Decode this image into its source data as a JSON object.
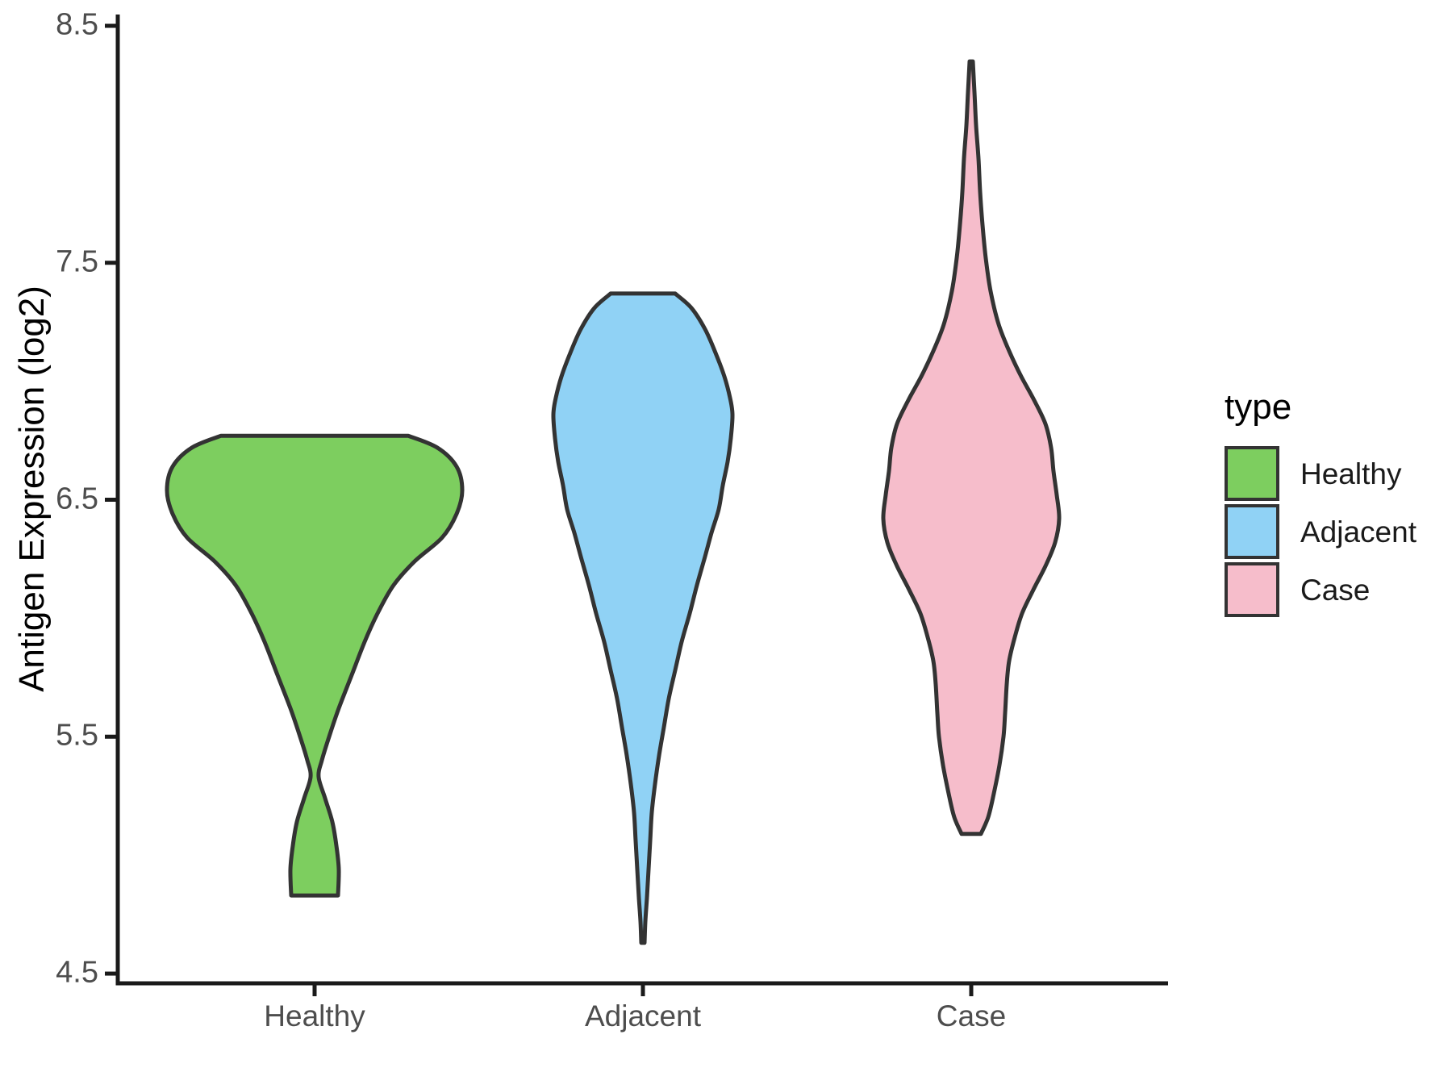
{
  "chart_data": {
    "type": "violin",
    "title": "",
    "xlabel": "",
    "ylabel": "Antigen Expression (log2)",
    "ylim": [
      4.46,
      8.57
    ],
    "y_ticks": [
      8.5,
      7.5,
      6.5,
      5.5,
      4.5
    ],
    "y_tick_labels": [
      "8.5",
      "7.5",
      "6.5",
      "5.5",
      "4.5"
    ],
    "categories": [
      "Healthy",
      "Adjacent",
      "Case"
    ],
    "grid": "off",
    "theme": "classic (white background, black axis lines)",
    "legend": {
      "title": "type",
      "position": "right",
      "entries": [
        "Healthy",
        "Adjacent",
        "Case"
      ]
    },
    "colors": {
      "healthy_fill": "#7dce5f",
      "adjacent_fill": "#90d2f5",
      "case_fill": "#f6bdcb",
      "violin_outline": "#333333",
      "axis_line": "#1a1a1a",
      "tick_text": "#4d4d4d",
      "title_text": "#000000"
    },
    "profile_units": {
      "value": "Antigen Expression (log2)",
      "halfwidth": "px, density half-width"
    },
    "series": [
      {
        "name": "Healthy",
        "fill": "#7dce5f",
        "value_range": [
          4.83,
          6.77
        ],
        "shape_notes": "flat top ~6.77, widest ~6.54, narrow waist ~5.33, small lobe ending flat ~4.83",
        "profile": [
          [
            6.77,
            116
          ],
          [
            6.72,
            152
          ],
          [
            6.64,
            176
          ],
          [
            6.54,
            183
          ],
          [
            6.44,
            176
          ],
          [
            6.34,
            158
          ],
          [
            6.24,
            124
          ],
          [
            6.14,
            98
          ],
          [
            6.02,
            78
          ],
          [
            5.9,
            62
          ],
          [
            5.76,
            46
          ],
          [
            5.62,
            30
          ],
          [
            5.5,
            18
          ],
          [
            5.4,
            9
          ],
          [
            5.33,
            5
          ],
          [
            5.24,
            13
          ],
          [
            5.14,
            22
          ],
          [
            5.04,
            27
          ],
          [
            4.94,
            30
          ],
          [
            4.83,
            29
          ]
        ]
      },
      {
        "name": "Adjacent",
        "fill": "#90d2f5",
        "value_range": [
          4.63,
          7.37
        ],
        "shape_notes": "flat top ~7.37, widest ~6.86, long taper to thin tip ~4.63",
        "profile": [
          [
            7.37,
            40
          ],
          [
            7.31,
            60
          ],
          [
            7.22,
            77
          ],
          [
            7.12,
            90
          ],
          [
            7.02,
            101
          ],
          [
            6.93,
            108
          ],
          [
            6.86,
            111
          ],
          [
            6.76,
            109
          ],
          [
            6.66,
            105
          ],
          [
            6.56,
            99
          ],
          [
            6.46,
            94
          ],
          [
            6.36,
            85
          ],
          [
            6.26,
            77
          ],
          [
            6.14,
            67
          ],
          [
            6.02,
            58
          ],
          [
            5.9,
            48
          ],
          [
            5.78,
            40
          ],
          [
            5.66,
            32
          ],
          [
            5.54,
            26
          ],
          [
            5.42,
            20
          ],
          [
            5.3,
            15
          ],
          [
            5.18,
            11
          ],
          [
            5.06,
            9
          ],
          [
            4.94,
            7
          ],
          [
            4.82,
            5
          ],
          [
            4.72,
            3
          ],
          [
            4.63,
            2
          ]
        ]
      },
      {
        "name": "Case",
        "fill": "#f6bdcb",
        "value_range": [
          5.09,
          8.35
        ],
        "shape_notes": "thin spike up to ~8.35, widest ~6.42, lower lobe ~5.5, flat bottom ~5.09",
        "profile": [
          [
            8.35,
            2
          ],
          [
            8.22,
            4
          ],
          [
            8.08,
            6
          ],
          [
            7.94,
            9
          ],
          [
            7.8,
            11
          ],
          [
            7.66,
            14
          ],
          [
            7.52,
            18
          ],
          [
            7.38,
            24
          ],
          [
            7.24,
            34
          ],
          [
            7.12,
            48
          ],
          [
            7.02,
            62
          ],
          [
            6.92,
            78
          ],
          [
            6.82,
            92
          ],
          [
            6.72,
            99
          ],
          [
            6.62,
            102
          ],
          [
            6.52,
            106
          ],
          [
            6.42,
            109
          ],
          [
            6.32,
            104
          ],
          [
            6.22,
            92
          ],
          [
            6.12,
            77
          ],
          [
            6.02,
            63
          ],
          [
            5.92,
            54
          ],
          [
            5.82,
            47
          ],
          [
            5.72,
            44
          ],
          [
            5.6,
            42
          ],
          [
            5.5,
            40
          ],
          [
            5.38,
            35
          ],
          [
            5.26,
            28
          ],
          [
            5.16,
            21
          ],
          [
            5.09,
            12
          ]
        ]
      }
    ]
  }
}
